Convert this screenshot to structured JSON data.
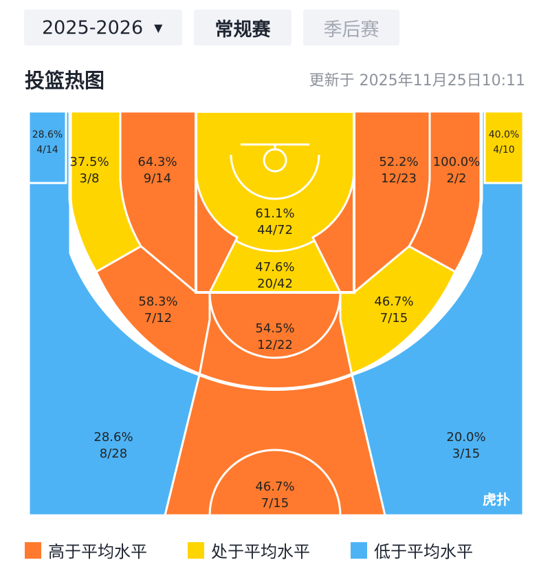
{
  "season": {
    "label": "2025-2026"
  },
  "tabs": [
    {
      "label": "常规赛",
      "active": true
    },
    {
      "label": "季后赛",
      "active": false
    }
  ],
  "section_title": "投篮热图",
  "updated_text": "更新于 2025年11月25日10:11",
  "zones": {
    "left_corner3": {
      "pct": "28.6%",
      "frac": "4/14",
      "level": "low"
    },
    "right_corner3": {
      "pct": "40.0%",
      "frac": "4/10",
      "level": "avg"
    },
    "left_outer_mid": {
      "pct": "37.5%",
      "frac": "3/8",
      "level": "avg"
    },
    "left_inner_mid": {
      "pct": "64.3%",
      "frac": "9/14",
      "level": "high"
    },
    "restricted": {
      "pct": "61.1%",
      "frac": "44/72",
      "level": "avg"
    },
    "right_inner_mid": {
      "pct": "52.2%",
      "frac": "12/23",
      "level": "high"
    },
    "right_outer_mid": {
      "pct": "100.0%",
      "frac": "2/2",
      "level": "high"
    },
    "paint": {
      "pct": "47.6%",
      "frac": "20/42",
      "level": "avg"
    },
    "left_elbow": {
      "pct": "58.3%",
      "frac": "7/12",
      "level": "high"
    },
    "right_elbow": {
      "pct": "46.7%",
      "frac": "7/15",
      "level": "avg"
    },
    "top_key": {
      "pct": "54.5%",
      "frac": "12/22",
      "level": "high"
    },
    "left_wing3": {
      "pct": "28.6%",
      "frac": "8/28",
      "level": "low"
    },
    "right_wing3": {
      "pct": "20.0%",
      "frac": "3/15",
      "level": "low"
    },
    "top3": {
      "pct": "46.7%",
      "frac": "7/15",
      "level": "high"
    }
  },
  "legend": [
    {
      "label": "高于平均水平",
      "color": "#ff7a2e"
    },
    {
      "label": "处于平均水平",
      "color": "#ffd500"
    },
    {
      "label": "低于平均水平",
      "color": "#4db3f5"
    }
  ],
  "watermark": "虎扑",
  "colors": {
    "high": "#ff7a2e",
    "avg": "#ffd500",
    "low": "#4db3f5"
  }
}
